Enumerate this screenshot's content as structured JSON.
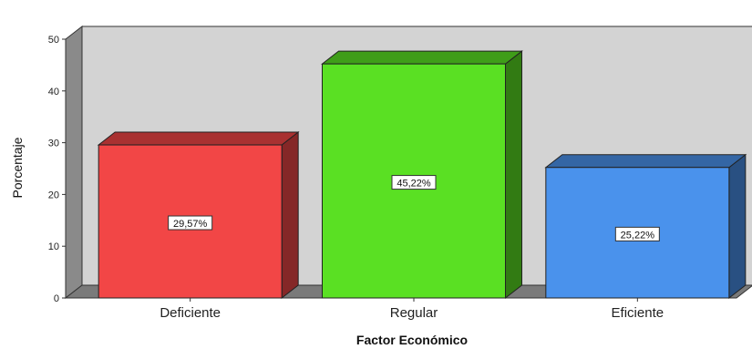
{
  "chart_data": {
    "type": "bar",
    "style": "3d",
    "categories": [
      "Deficiente",
      "Regular",
      "Eficiente"
    ],
    "values": [
      29.57,
      45.22,
      25.22
    ],
    "data_labels": [
      "29,57%",
      "45,22%",
      "25,22%"
    ],
    "colors": [
      "#f24646",
      "#5ae023",
      "#4a92ec"
    ],
    "xlabel": "Factor Económico",
    "ylabel": "Porcentaje",
    "ylim": [
      0,
      50
    ],
    "yticks": [
      0,
      10,
      20,
      30,
      40,
      50
    ],
    "grid": false,
    "legend": "none"
  }
}
